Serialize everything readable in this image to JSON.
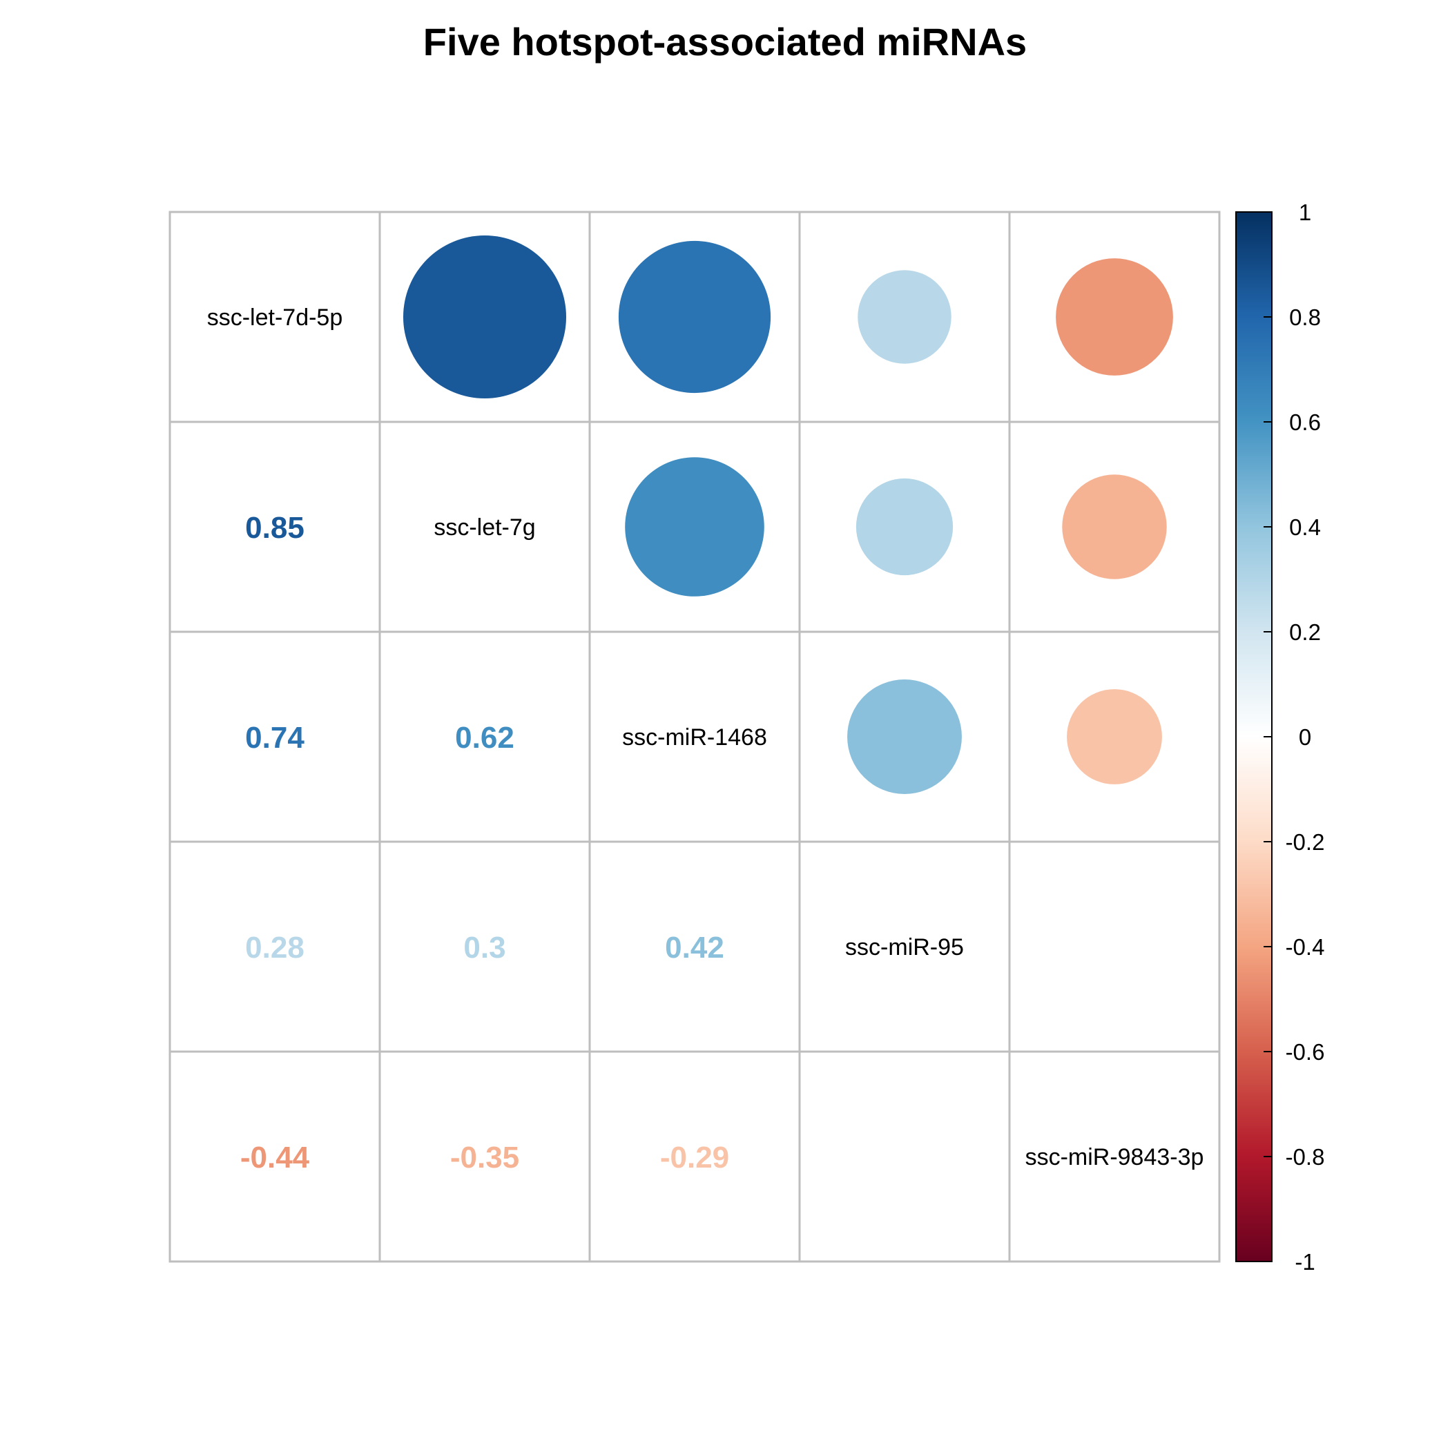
{
  "chart_data": {
    "type": "heatmap",
    "subtype": "correlation-matrix (upper: circles, lower: numbers)",
    "title": "Five hotspot-associated miRNAs",
    "variables": [
      "ssc-let-7d-5p",
      "ssc-let-7g",
      "ssc-miR-1468",
      "ssc-miR-95",
      "ssc-miR-9843-3p"
    ],
    "matrix": [
      [
        1,
        0.85,
        0.74,
        0.28,
        -0.44
      ],
      [
        0.85,
        1,
        0.62,
        0.3,
        -0.35
      ],
      [
        0.74,
        0.62,
        1,
        0.42,
        -0.29
      ],
      [
        0.28,
        0.3,
        0.42,
        1,
        0
      ],
      [
        -0.44,
        -0.35,
        -0.29,
        0,
        1
      ]
    ],
    "lower_labels": [
      [
        null,
        null,
        null,
        null,
        null
      ],
      [
        "0.85",
        null,
        null,
        null,
        null
      ],
      [
        "0.74",
        "0.62",
        null,
        null,
        null
      ],
      [
        "0.28",
        "0.3",
        "0.42",
        null,
        null
      ],
      [
        "-0.44",
        "-0.35",
        "-0.29",
        "",
        null
      ]
    ],
    "colorbar": {
      "range": [
        -1,
        1
      ],
      "ticks": [
        "1",
        "0.8",
        "0.6",
        "0.4",
        "0.2",
        "0",
        "-0.2",
        "-0.4",
        "-0.6",
        "-0.8",
        "-1"
      ],
      "tick_values": [
        1,
        0.8,
        0.6,
        0.4,
        0.2,
        0,
        -0.2,
        -0.4,
        -0.6,
        -0.8,
        -1
      ],
      "colors": [
        "#67001F",
        "#B2182B",
        "#D6604D",
        "#F4A582",
        "#FDDBC7",
        "#FFFFFF",
        "#D1E5F0",
        "#92C5DE",
        "#4393C3",
        "#2166AC",
        "#053061"
      ]
    },
    "grid": true,
    "legend": "right"
  }
}
